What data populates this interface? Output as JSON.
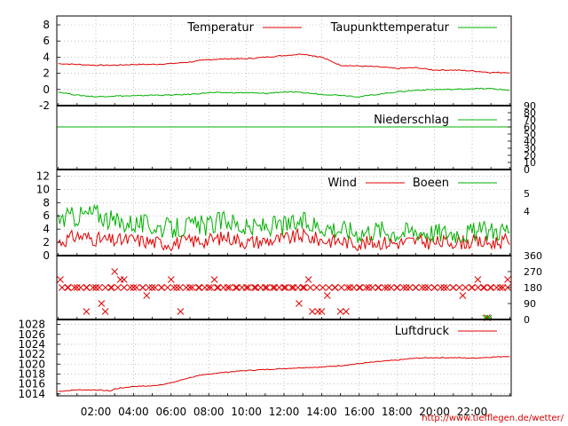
{
  "footer_url": "http://www.tiefflegen.de/wetter/",
  "colors": {
    "red": "#e00000",
    "green": "#00b000",
    "grid": "#999999"
  },
  "x_tick_labels": [
    "02:00",
    "04:00",
    "06:00",
    "08:00",
    "10:00",
    "12:00",
    "14:00",
    "16:00",
    "18:00",
    "20:00",
    "22:00"
  ],
  "chart_data": [
    {
      "type": "line",
      "name": "temperature-panel",
      "x_range_hours": [
        0,
        24
      ],
      "ylim": [
        -2,
        9
      ],
      "y_ticks": [
        "8",
        "6",
        "4",
        "2",
        "0",
        "-2"
      ],
      "series": [
        {
          "name": "Temperatur",
          "color": "#e00000",
          "x": [
            0,
            1,
            2,
            3,
            4,
            5,
            6,
            7,
            8,
            9,
            10,
            11,
            12,
            13,
            14,
            15,
            16,
            17,
            18,
            19,
            20,
            21,
            22,
            23,
            24
          ],
          "values": [
            3.2,
            3.1,
            3.0,
            3.0,
            3.1,
            3.1,
            3.2,
            3.4,
            3.7,
            3.8,
            3.8,
            4.0,
            4.2,
            4.4,
            4.0,
            3.0,
            2.9,
            2.8,
            2.6,
            2.7,
            2.4,
            2.4,
            2.3,
            2.1,
            2.1
          ]
        },
        {
          "name": "Taupunkttemperatur",
          "color": "#00b000",
          "x": [
            0,
            1,
            2,
            3,
            4,
            5,
            6,
            7,
            8,
            9,
            10,
            11,
            12,
            13,
            14,
            15,
            16,
            17,
            18,
            19,
            20,
            21,
            22,
            23,
            24
          ],
          "values": [
            -0.3,
            -0.7,
            -0.9,
            -0.8,
            -0.8,
            -0.7,
            -0.7,
            -0.6,
            -0.4,
            -0.4,
            -0.4,
            -0.5,
            -0.3,
            -0.4,
            -0.6,
            -0.7,
            -0.9,
            -0.6,
            -0.3,
            -0.1,
            0.0,
            0.0,
            0.1,
            0.1,
            -0.1
          ]
        }
      ]
    },
    {
      "type": "line",
      "name": "precip-panel",
      "ylim": [
        0,
        90
      ],
      "y_ticks_right": [
        "90",
        "80",
        "70",
        "60",
        "50",
        "40",
        "30",
        "20",
        "10",
        "0"
      ],
      "series": [
        {
          "name": "Niederschlag",
          "color": "#00b000",
          "x": [
            0,
            24
          ],
          "values": [
            60,
            60
          ]
        }
      ]
    },
    {
      "type": "line",
      "name": "wind-panel",
      "ylim": [
        0,
        13
      ],
      "y_ticks": [
        "12",
        "10",
        "8",
        "6",
        "4",
        "2",
        "0"
      ],
      "y_ticks_right": [
        "5",
        "4"
      ],
      "series": [
        {
          "name": "Wind",
          "color": "#e00000",
          "x": [
            0,
            1,
            2,
            3,
            4,
            5,
            6,
            7,
            8,
            9,
            10,
            11,
            12,
            13,
            14,
            15,
            16,
            17,
            18,
            19,
            20,
            21,
            22,
            23,
            24
          ],
          "values": [
            2.0,
            3.0,
            2.5,
            2.2,
            2.4,
            2.0,
            1.8,
            2.2,
            2.3,
            2.8,
            2.0,
            2.2,
            2.5,
            3.0,
            2.3,
            2.2,
            1.8,
            2.0,
            1.9,
            2.2,
            1.9,
            2.1,
            2.0,
            1.9,
            2.3
          ]
        },
        {
          "name": "Boeen",
          "color": "#00b000",
          "x": [
            0,
            1,
            2,
            3,
            4,
            5,
            6,
            7,
            8,
            9,
            10,
            11,
            12,
            13,
            14,
            15,
            16,
            17,
            18,
            19,
            20,
            21,
            22,
            23,
            24
          ],
          "values": [
            5.5,
            6.0,
            6.5,
            5.0,
            5.0,
            4.5,
            4.0,
            4.5,
            4.5,
            5.5,
            4.0,
            4.5,
            4.5,
            5.0,
            4.5,
            4.0,
            3.5,
            4.0,
            3.5,
            3.8,
            3.5,
            3.5,
            3.5,
            3.8,
            4.0
          ]
        }
      ]
    },
    {
      "type": "scatter",
      "name": "wind-direction-panel",
      "ylim": [
        0,
        360
      ],
      "y_ticks_right": [
        "360",
        "270",
        "180",
        "90",
        "0"
      ],
      "series": [
        {
          "name": "",
          "color": "#e00000",
          "x": [
            0,
            0.5,
            1,
            1.5,
            1.5,
            2,
            2,
            2.3,
            2.5,
            2.8,
            3,
            3.3,
            3.5,
            4,
            4.5,
            4.7,
            5,
            5.5,
            6,
            6.3,
            6.5,
            7,
            7.5,
            8,
            8.3,
            8.5,
            9,
            9.5,
            10,
            10.5,
            11,
            11.5,
            12,
            12.5,
            12.8,
            13,
            13.3,
            13.5,
            13.8,
            14,
            14.3,
            14.7,
            15,
            15.3,
            15.5,
            16,
            16.5,
            17,
            17.5,
            18,
            18.5,
            19,
            19.5,
            20,
            20.5,
            21,
            21.5,
            22,
            22.3,
            22.6,
            22.8,
            23,
            23.5,
            24
          ],
          "values": [
            225,
            180,
            180,
            180,
            45,
            180,
            180,
            90,
            45,
            180,
            270,
            225,
            225,
            180,
            180,
            135,
            180,
            180,
            225,
            180,
            45,
            180,
            180,
            180,
            225,
            180,
            180,
            180,
            180,
            180,
            180,
            180,
            180,
            180,
            90,
            180,
            225,
            45,
            45,
            45,
            135,
            180,
            45,
            45,
            180,
            180,
            180,
            180,
            180,
            180,
            180,
            180,
            180,
            180,
            180,
            180,
            135,
            180,
            225,
            180,
            0,
            180,
            180,
            225
          ]
        },
        {
          "name": "",
          "color": "#00b000",
          "x": [
            22.7,
            22.9
          ],
          "values": [
            0,
            0
          ]
        }
      ]
    },
    {
      "type": "line",
      "name": "pressure-panel",
      "ylim": [
        1013,
        1029
      ],
      "y_ticks": [
        "1028",
        "1026",
        "1024",
        "1022",
        "1020",
        "1018",
        "1016",
        "1014"
      ],
      "series": [
        {
          "name": "Luftdruck",
          "color": "#e00000",
          "x": [
            0,
            1,
            2,
            2.8,
            3,
            4,
            5,
            6,
            7,
            8,
            9,
            10,
            11,
            12,
            13,
            14,
            15,
            16,
            17,
            18,
            19,
            20,
            21,
            22,
            23,
            24
          ],
          "values": [
            1014.5,
            1014.8,
            1014.8,
            1014.6,
            1015.0,
            1015.5,
            1015.6,
            1016.2,
            1017.3,
            1018.0,
            1018.4,
            1018.7,
            1018.9,
            1019.1,
            1019.3,
            1019.4,
            1019.7,
            1020.1,
            1020.5,
            1020.8,
            1021.2,
            1021.3,
            1021.3,
            1021.2,
            1021.4,
            1021.6
          ]
        }
      ]
    }
  ]
}
